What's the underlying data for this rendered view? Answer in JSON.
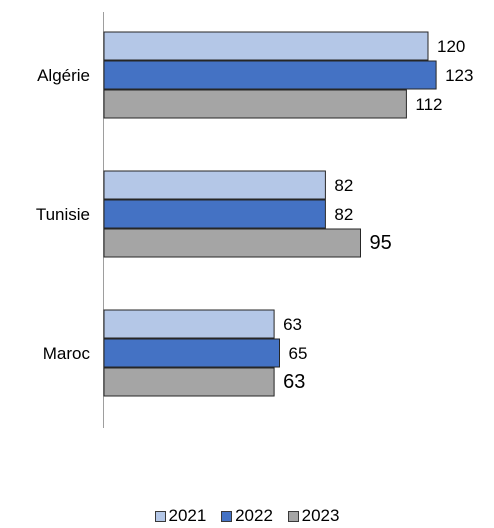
{
  "chart_data": {
    "type": "bar",
    "orientation": "horizontal",
    "categories": [
      "Algérie",
      "Tunisie",
      "Maroc"
    ],
    "series": [
      {
        "name": "2021",
        "values": [
          120,
          82,
          63
        ],
        "color": "#b4c7e7"
      },
      {
        "name": "2022",
        "values": [
          123,
          82,
          65
        ],
        "color": "#4472c4"
      },
      {
        "name": "2023",
        "values": [
          112,
          95,
          63
        ],
        "color": "#a5a5a5"
      }
    ],
    "data_labels": [
      [
        "120",
        "82",
        "63"
      ],
      [
        "123",
        "82",
        "65"
      ],
      [
        "112",
        "95",
        "63"
      ]
    ],
    "xlim": [
      0,
      130
    ],
    "grid": false,
    "legend_position": "bottom",
    "title": "",
    "xlabel": "",
    "ylabel": ""
  }
}
